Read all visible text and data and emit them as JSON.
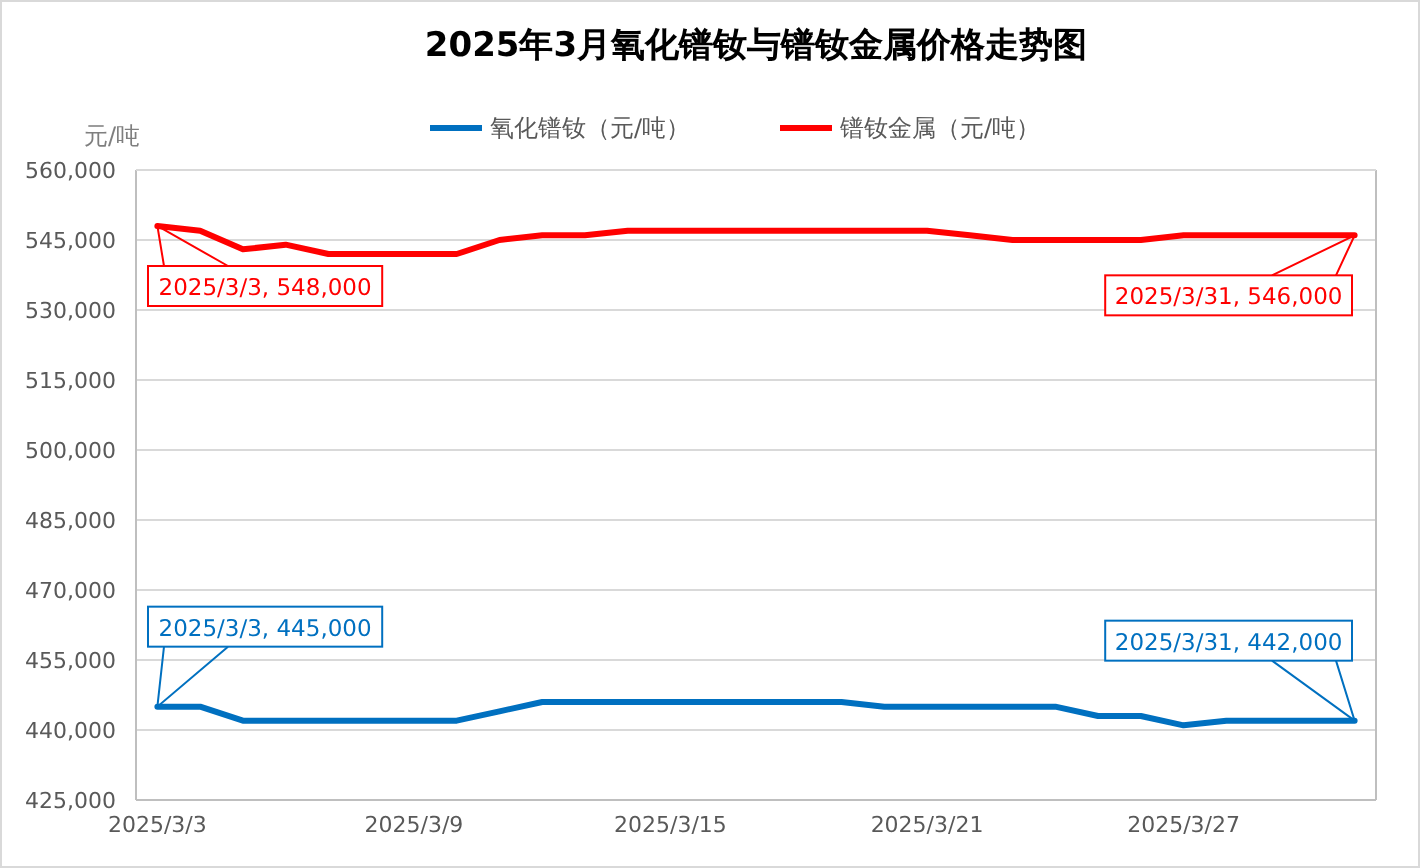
{
  "chart_data": {
    "type": "line",
    "title": "2025年3月氧化镨钕与镨钕金属价格走势图",
    "ylabel": "元/吨",
    "categories": [
      "2025/3/3",
      null,
      null,
      null,
      null,
      null,
      "2025/3/9",
      null,
      null,
      null,
      null,
      null,
      "2025/3/15",
      null,
      null,
      null,
      null,
      null,
      "2025/3/21",
      null,
      null,
      null,
      null,
      null,
      "2025/3/27",
      null,
      null,
      null,
      null
    ],
    "series": [
      {
        "name": "氧化镨钕（元/吨）",
        "color": "#0070c0",
        "values": [
          445000,
          445000,
          442000,
          442000,
          442000,
          442000,
          442000,
          442000,
          444000,
          446000,
          446000,
          446000,
          446000,
          446000,
          446000,
          446000,
          446000,
          445000,
          445000,
          445000,
          445000,
          445000,
          443000,
          443000,
          441000,
          442000,
          442000,
          442000,
          442000
        ]
      },
      {
        "name": "镨钕金属（元/吨）",
        "color": "#ff0000",
        "values": [
          548000,
          547000,
          543000,
          544000,
          542000,
          542000,
          542000,
          542000,
          545000,
          546000,
          546000,
          547000,
          547000,
          547000,
          547000,
          547000,
          547000,
          547000,
          547000,
          546000,
          545000,
          545000,
          545000,
          545000,
          546000,
          546000,
          546000,
          546000,
          546000
        ]
      }
    ],
    "ylim": [
      425000,
      560000
    ],
    "yticks": [
      {
        "value": 425000,
        "label": "425,000"
      },
      {
        "value": 440000,
        "label": "440,000"
      },
      {
        "value": 455000,
        "label": "455,000"
      },
      {
        "value": 470000,
        "label": "470,000"
      },
      {
        "value": 485000,
        "label": "485,000"
      },
      {
        "value": 500000,
        "label": "500,000"
      },
      {
        "value": 515000,
        "label": "515,000"
      },
      {
        "value": 530000,
        "label": "530,000"
      },
      {
        "value": 545000,
        "label": "545,000"
      },
      {
        "value": 560000,
        "label": "560,000"
      }
    ],
    "grid": "y",
    "legend": "top",
    "marker": "none",
    "line_style": "solid",
    "annotations": [
      {
        "text": "2025/3/3, 548,000",
        "x": "2025/3/3",
        "y": 548000
      },
      {
        "text": "2025/3/31, 546,000",
        "y": 546000
      },
      {
        "text": "2025/3/3, 445,000",
        "x": "2025/3/3",
        "y": 445000
      },
      {
        "text": "2025/3/31, 442,000",
        "y": 442000
      }
    ]
  }
}
